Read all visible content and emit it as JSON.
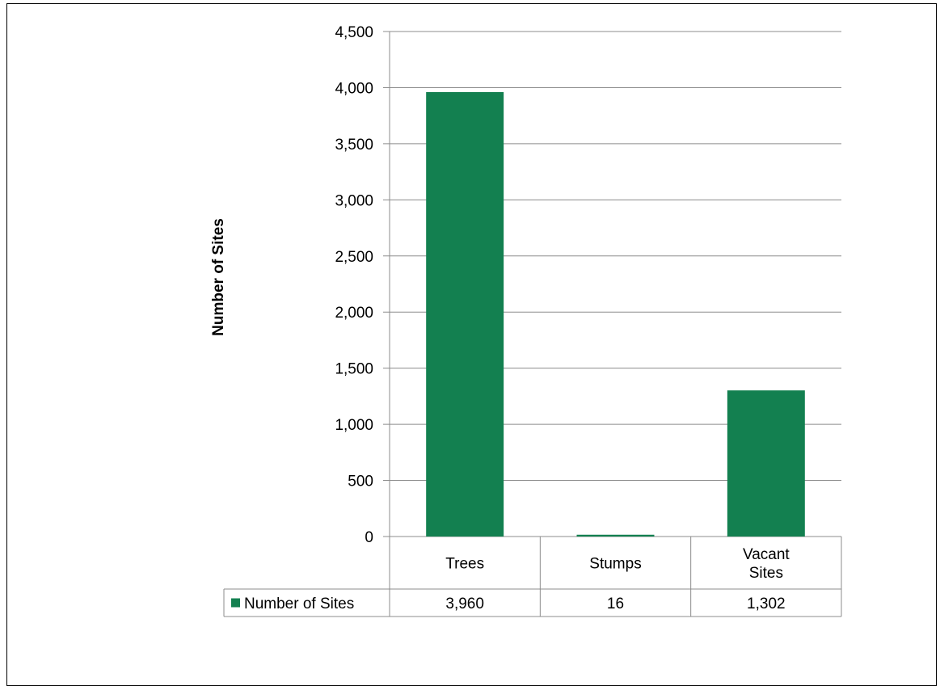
{
  "chart_data": {
    "type": "bar",
    "categories": [
      "Trees",
      "Stumps",
      "Vacant Sites"
    ],
    "category_lines": [
      [
        "Trees"
      ],
      [
        "Stumps"
      ],
      [
        "Vacant",
        "Sites"
      ]
    ],
    "series": [
      {
        "name": "Number of Sites",
        "values": [
          3960,
          16,
          1302
        ],
        "color": "#138050"
      }
    ],
    "data_table_labels": [
      "3,960",
      "16",
      "1,302"
    ],
    "title": "",
    "xlabel": "",
    "ylabel": "Number of Sites",
    "ylim": [
      0,
      4500
    ],
    "yticks": [
      0,
      500,
      1000,
      1500,
      2000,
      2500,
      3000,
      3500,
      4000,
      4500
    ],
    "ytick_labels": [
      "0",
      "500",
      "1,000",
      "1,500",
      "2,000",
      "2,500",
      "3,000",
      "3,500",
      "4,000",
      "4,500"
    ],
    "grid": true,
    "legend": "data-table"
  }
}
